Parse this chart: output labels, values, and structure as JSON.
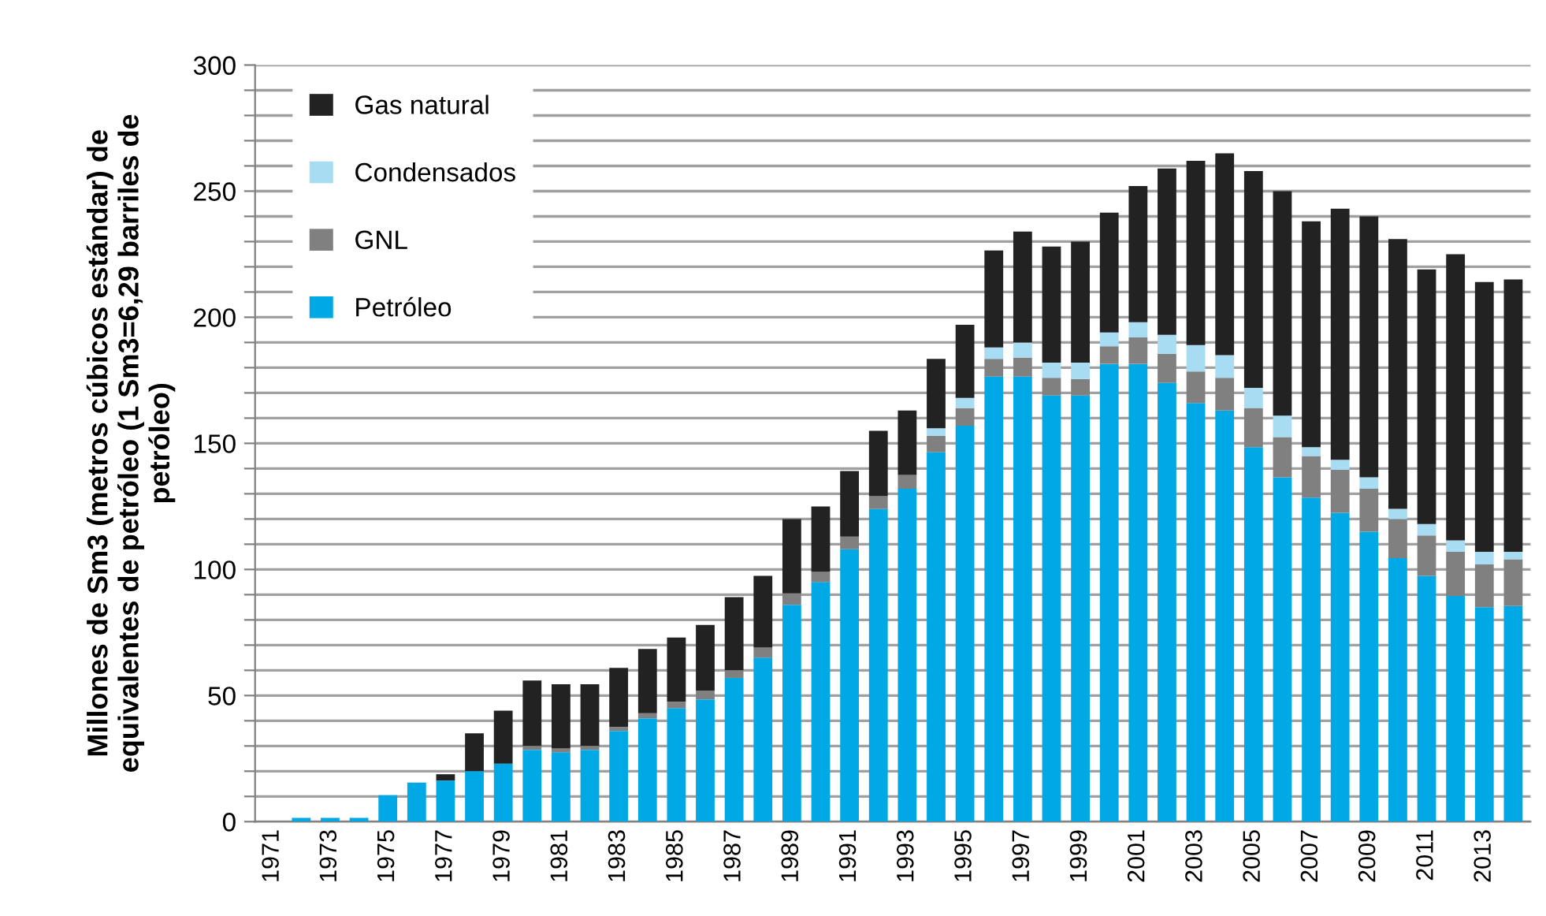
{
  "chart_data": {
    "type": "bar",
    "stacked": true,
    "ylabel": "Millones de Sm3 (metros cúbicos estándar) de\nequivalentes de petróleo (1 Sm3=6,29 barriles de\npetróleo)",
    "categories": [
      "1971",
      null,
      "1973",
      null,
      "1975",
      null,
      "1977",
      null,
      "1979",
      null,
      "1981",
      null,
      "1983",
      null,
      "1985",
      null,
      "1987",
      null,
      "1989",
      null,
      "1991",
      null,
      "1993",
      null,
      "1995",
      null,
      "1997",
      null,
      "1999",
      null,
      "2001",
      null,
      "2003",
      null,
      "2005",
      null,
      "2007",
      null,
      "2009",
      null,
      "2011",
      null,
      "2013",
      null
    ],
    "series": [
      {
        "name": "Petróleo",
        "color": "#00a9e6",
        "values": [
          0,
          1.5,
          1.5,
          1.5,
          10.5,
          15.5,
          16.3,
          20,
          23,
          28.5,
          27.5,
          28.5,
          36,
          41,
          45,
          48.5,
          57,
          65,
          86,
          95,
          108,
          124,
          132,
          146.5,
          157,
          176.5,
          176.5,
          169,
          169,
          181.5,
          181.5,
          174,
          166,
          163,
          148.5,
          136.5,
          128.5,
          122.5,
          115,
          104.5,
          97.5,
          89.5,
          85,
          85.5
        ]
      },
      {
        "name": "GNL",
        "color": "#808080",
        "values": [
          0,
          0,
          0,
          0,
          0,
          0,
          0,
          0,
          0,
          1.5,
          1.5,
          1.5,
          1.5,
          2,
          2.5,
          3.5,
          3,
          4,
          4.5,
          4,
          5,
          5,
          5.5,
          6.5,
          7,
          7,
          7.5,
          7,
          6.5,
          7,
          10.5,
          11.5,
          12.5,
          13,
          15.5,
          16,
          16.5,
          17,
          17,
          15.5,
          16,
          17.5,
          17,
          18.5
        ]
      },
      {
        "name": "Condensados",
        "color": "#a8dcf3",
        "values": [
          0,
          0,
          0,
          0,
          0,
          0,
          0,
          0,
          0,
          0,
          0,
          0,
          0,
          0,
          0,
          0,
          0,
          0,
          0,
          0,
          0,
          0,
          0,
          3,
          4,
          4.5,
          6,
          6,
          6.5,
          5.5,
          6,
          7.5,
          10.5,
          9,
          8,
          8.5,
          3.5,
          4,
          4.5,
          4,
          4.5,
          4.5,
          5,
          3
        ]
      },
      {
        "name": "Gas natural",
        "color": "#222222",
        "values": [
          0,
          0,
          0,
          0,
          0,
          0,
          2.5,
          15,
          21,
          26,
          25.5,
          24.5,
          23.5,
          25.5,
          25.5,
          26,
          29,
          28.5,
          29.5,
          26,
          26,
          26,
          25.5,
          27.5,
          29,
          38.5,
          44,
          46,
          48,
          47.5,
          54,
          66,
          73,
          80,
          86,
          89,
          89.5,
          99.5,
          103.5,
          107,
          101,
          113.5,
          107,
          108
        ]
      }
    ],
    "ylim": [
      0,
      300
    ],
    "yticks": [
      0,
      {
        "value": 10,
        "label": null
      },
      {
        "value": 20,
        "label": null
      },
      {
        "value": 30,
        "label": null
      },
      {
        "value": 40,
        "label": null
      },
      50,
      {
        "value": 60,
        "label": null
      },
      {
        "value": 70,
        "label": null
      },
      {
        "value": 80,
        "label": null
      },
      {
        "value": 90,
        "label": null
      },
      100,
      {
        "value": 110,
        "label": null
      },
      {
        "value": 120,
        "label": null
      },
      {
        "value": 130,
        "label": null
      },
      {
        "value": 140,
        "label": null
      },
      150,
      {
        "value": 160,
        "label": null
      },
      {
        "value": 170,
        "label": null
      },
      {
        "value": 180,
        "label": null
      },
      {
        "value": 190,
        "label": null
      },
      200,
      {
        "value": 210,
        "label": null
      },
      {
        "value": 220,
        "label": null
      },
      {
        "value": 230,
        "label": null
      },
      {
        "value": 240,
        "label": null
      },
      250,
      {
        "value": 260,
        "label": null
      },
      {
        "value": 270,
        "label": null
      },
      {
        "value": 280,
        "label": null
      },
      {
        "value": 290,
        "label": null
      },
      300
    ],
    "grid": "y",
    "legend": "top left"
  }
}
